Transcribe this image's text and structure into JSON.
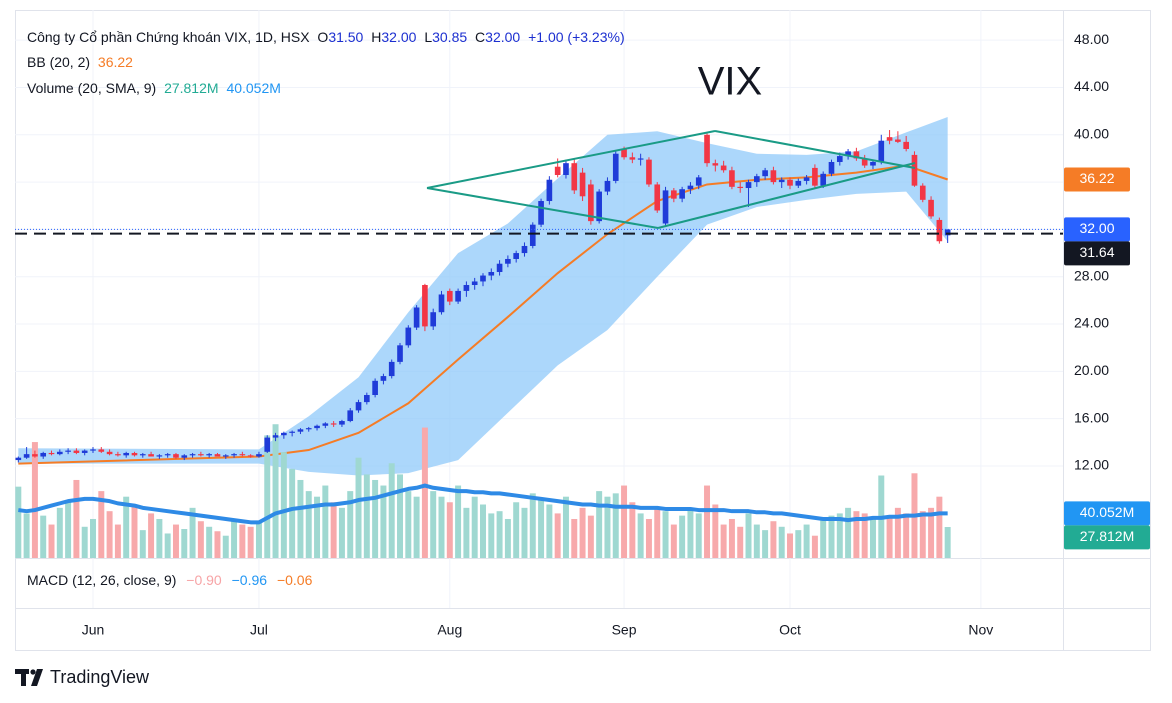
{
  "legend": {
    "title": "Công ty Cổ phần Chứng khoán VIX, 1D, HSX",
    "ohlc": [
      {
        "key": "O",
        "value": "31.50"
      },
      {
        "key": "H",
        "value": "32.00"
      },
      {
        "key": "L",
        "value": "30.85"
      },
      {
        "key": "C",
        "value": "32.00"
      }
    ],
    "change": "+1.00 (+3.23%)",
    "bb_label": "BB (20, 2)",
    "bb_value": "36.22",
    "volume_label": "Volume (20, SMA, 9)",
    "volume_values": [
      "27.812M",
      "40.052M"
    ],
    "macd_label": "MACD (12, 26, close, 9)",
    "macd_values": [
      "−0.90",
      "−0.96",
      "−0.06"
    ]
  },
  "chart_data": {
    "type": "candlestick",
    "title": "VIX",
    "up_color": "#1f3bd8",
    "down_color": "#f23645",
    "volume_up_color": "#9fd8d1",
    "volume_down_color": "#f7a9ab",
    "open": [
      12.5,
      12.7,
      13.0,
      12.8,
      13.1,
      13.0,
      13.2,
      13.3,
      13.1,
      13.3,
      13.4,
      13.2,
      13.0,
      12.9,
      13.1,
      12.9,
      13.0,
      12.8,
      12.9,
      13.0,
      12.7,
      12.9,
      13.0,
      12.9,
      13.0,
      12.8,
      12.9,
      13.0,
      12.9,
      12.8,
      13.2,
      14.4,
      14.6,
      14.8,
      14.9,
      15.1,
      15.2,
      15.4,
      15.6,
      15.5,
      15.8,
      16.7,
      17.4,
      18.0,
      19.2,
      19.6,
      20.8,
      22.2,
      23.7,
      27.3,
      23.8,
      25.0,
      26.8,
      25.9,
      26.8,
      27.3,
      27.6,
      28.1,
      28.4,
      29.1,
      29.5,
      30.0,
      30.6,
      32.4,
      34.4,
      37.3,
      36.6,
      37.6,
      36.8,
      35.8,
      32.7,
      35.2,
      36.1,
      38.8,
      38.1,
      37.9,
      37.9,
      35.8,
      32.5,
      35.3,
      34.6,
      35.4,
      35.7,
      40.0,
      37.6,
      37.4,
      37.0,
      35.6,
      35.5,
      36.0,
      36.5,
      37.0,
      36.0,
      36.2,
      35.7,
      36.1,
      37.2,
      35.7,
      36.7,
      37.7,
      38.2,
      38.6,
      38.0,
      37.4,
      37.7,
      39.8,
      39.6,
      39.4,
      38.3,
      35.7,
      34.5,
      32.8,
      31.5
    ],
    "high": [
      12.8,
      13.6,
      13.3,
      13.2,
      13.3,
      13.4,
      13.5,
      13.5,
      13.4,
      13.6,
      13.6,
      13.4,
      13.2,
      13.2,
      13.2,
      13.1,
      13.2,
      13.0,
      13.1,
      13.1,
      13.0,
      13.1,
      13.2,
      13.1,
      13.1,
      13.0,
      13.1,
      13.2,
      13.0,
      13.2,
      14.6,
      14.8,
      14.9,
      15.0,
      15.2,
      15.3,
      15.5,
      15.7,
      15.8,
      15.9,
      16.9,
      17.6,
      18.2,
      19.4,
      19.8,
      21.0,
      22.4,
      23.9,
      25.6,
      27.4,
      25.3,
      26.8,
      27.0,
      27.0,
      27.6,
      27.9,
      28.3,
      28.7,
      29.4,
      29.8,
      30.2,
      30.9,
      32.6,
      34.6,
      36.5,
      38.0,
      37.9,
      38.0,
      37.2,
      36.2,
      35.4,
      36.4,
      38.6,
      39.0,
      38.5,
      38.4,
      38.1,
      36.0,
      35.6,
      35.5,
      35.6,
      36.0,
      36.6,
      40.2,
      37.9,
      37.8,
      37.3,
      36.0,
      36.2,
      36.7,
      37.2,
      37.3,
      36.4,
      36.4,
      36.3,
      36.6,
      37.5,
      36.9,
      37.9,
      38.5,
      38.8,
      38.9,
      38.3,
      37.9,
      40.0,
      40.4,
      40.3,
      39.9,
      38.6,
      35.9,
      34.8,
      33.0,
      32.0
    ],
    "low": [
      12.3,
      12.6,
      12.7,
      12.6,
      12.9,
      12.9,
      13.0,
      13.0,
      12.9,
      13.1,
      13.1,
      12.9,
      12.8,
      12.7,
      12.8,
      12.7,
      12.8,
      12.6,
      12.7,
      12.6,
      12.5,
      12.7,
      12.8,
      12.7,
      12.8,
      12.6,
      12.7,
      12.8,
      12.7,
      12.7,
      13.1,
      14.1,
      14.3,
      14.5,
      14.7,
      14.9,
      15.0,
      15.2,
      15.3,
      15.3,
      15.7,
      16.5,
      17.2,
      17.8,
      18.9,
      19.4,
      20.6,
      22.0,
      23.5,
      23.4,
      23.5,
      24.8,
      25.6,
      25.7,
      26.3,
      26.9,
      27.2,
      27.7,
      28.1,
      28.8,
      29.2,
      29.7,
      30.4,
      32.2,
      34.1,
      36.4,
      36.3,
      35.0,
      34.4,
      32.4,
      32.5,
      34.9,
      35.9,
      37.9,
      37.6,
      37.4,
      35.6,
      33.4,
      32.2,
      34.3,
      34.3,
      35.0,
      35.4,
      37.3,
      36.9,
      36.8,
      35.4,
      35.1,
      33.9,
      35.6,
      36.2,
      35.8,
      35.5,
      35.4,
      35.5,
      35.8,
      35.5,
      35.5,
      36.5,
      37.4,
      37.9,
      37.8,
      37.2,
      37.1,
      37.5,
      39.2,
      39.3,
      38.6,
      35.6,
      34.3,
      32.9,
      30.8,
      30.85
    ],
    "close": [
      12.7,
      13.0,
      12.8,
      13.1,
      13.0,
      13.2,
      13.3,
      13.1,
      13.3,
      13.4,
      13.2,
      13.0,
      12.9,
      13.1,
      12.9,
      13.0,
      12.8,
      12.9,
      13.0,
      12.7,
      12.9,
      13.0,
      12.9,
      13.0,
      12.8,
      12.9,
      13.0,
      12.9,
      12.8,
      13.0,
      14.4,
      14.6,
      14.8,
      14.9,
      15.1,
      15.2,
      15.4,
      15.6,
      15.5,
      15.8,
      16.7,
      17.4,
      18.0,
      19.2,
      19.6,
      20.8,
      22.2,
      23.7,
      25.4,
      23.8,
      25.0,
      26.5,
      25.9,
      26.8,
      27.3,
      27.6,
      28.1,
      28.4,
      29.1,
      29.5,
      30.0,
      30.6,
      32.4,
      34.4,
      36.2,
      36.6,
      37.6,
      35.3,
      34.8,
      32.7,
      35.2,
      36.1,
      38.4,
      38.1,
      37.9,
      38.0,
      35.8,
      33.6,
      35.3,
      34.6,
      35.4,
      35.7,
      36.4,
      37.6,
      37.4,
      37.0,
      35.6,
      35.5,
      36.0,
      36.5,
      37.0,
      36.0,
      36.2,
      35.7,
      36.1,
      36.4,
      35.7,
      36.7,
      37.7,
      38.2,
      38.6,
      38.0,
      37.4,
      37.7,
      39.5,
      39.5,
      39.4,
      38.8,
      35.7,
      34.5,
      33.1,
      31.0,
      32.0
    ],
    "volume": [
      64,
      40,
      104,
      38,
      30,
      45,
      52,
      70,
      28,
      35,
      60,
      42,
      30,
      55,
      48,
      25,
      40,
      35,
      22,
      30,
      26,
      45,
      33,
      28,
      24,
      20,
      35,
      30,
      28,
      32,
      110,
      120,
      95,
      80,
      70,
      60,
      55,
      65,
      50,
      45,
      60,
      90,
      75,
      70,
      65,
      85,
      75,
      60,
      55,
      117,
      60,
      55,
      50,
      65,
      45,
      55,
      48,
      40,
      42,
      35,
      50,
      45,
      58,
      52,
      48,
      40,
      55,
      35,
      45,
      38,
      60,
      55,
      58,
      65,
      50,
      40,
      35,
      45,
      42,
      30,
      38,
      45,
      40,
      65,
      48,
      30,
      35,
      28,
      40,
      30,
      25,
      33,
      28,
      22,
      25,
      30,
      20,
      35,
      38,
      40,
      45,
      42,
      40,
      35,
      74,
      38,
      45,
      40,
      76,
      42,
      45,
      55,
      27.812
    ],
    "volume_sma": {
      "color": "#2e8ae6",
      "values": [
        43,
        42,
        43,
        45,
        47,
        49,
        51,
        52,
        53,
        53,
        52,
        51,
        49,
        48,
        47,
        45,
        44,
        43,
        42,
        41,
        40,
        39,
        38,
        37,
        36,
        35,
        34,
        33,
        32,
        32,
        36,
        40,
        42,
        44,
        45,
        46,
        47,
        48,
        48,
        49,
        50,
        52,
        53,
        54,
        56,
        58,
        60,
        62,
        63,
        65,
        63,
        62,
        61,
        60,
        60,
        59,
        59,
        58,
        58,
        57,
        56,
        55,
        54,
        53,
        52,
        51,
        50,
        49,
        48,
        48,
        47,
        47,
        46,
        46,
        46,
        45,
        45,
        45,
        44,
        44,
        44,
        44,
        43,
        43,
        43,
        43,
        42,
        42,
        42,
        41,
        41,
        40,
        40,
        39,
        38,
        37,
        36,
        35,
        35,
        35,
        34,
        35,
        35,
        36,
        36,
        37,
        37,
        38,
        38,
        39,
        39,
        40,
        40.052
      ]
    },
    "bollinger": {
      "fill": "#90caf9",
      "basis_color": "#f57c26",
      "x": [
        0,
        29,
        35,
        41,
        47,
        53,
        59,
        65,
        71,
        77,
        83,
        89,
        95,
        101,
        107,
        112
      ],
      "upper": [
        13.5,
        13.4,
        16.2,
        19.5,
        25.0,
        30.0,
        32.5,
        36.3,
        40.0,
        40.3,
        39.3,
        38.4,
        38.3,
        38.6,
        40.2,
        41.5
      ],
      "basis": [
        12.2,
        12.8,
        13.35,
        14.8,
        17.3,
        21.0,
        24.6,
        28.3,
        31.6,
        34.4,
        35.8,
        36.2,
        36.4,
        36.8,
        37.4,
        36.22
      ],
      "lower": [
        12.2,
        12.2,
        11.5,
        11.2,
        11.4,
        12.5,
        16.5,
        20.5,
        23.5,
        28.0,
        32.4,
        33.9,
        34.5,
        35.0,
        35.2,
        31.0
      ]
    },
    "xlim": [
      -0.4,
      125.9
    ],
    "xticks": [
      {
        "value": 9,
        "label": "Jun"
      },
      {
        "value": 29,
        "label": "Jul"
      },
      {
        "value": 52,
        "label": "Aug"
      },
      {
        "value": 73,
        "label": "Sep"
      },
      {
        "value": 93,
        "label": "Oct"
      },
      {
        "value": 116,
        "label": "Nov"
      }
    ],
    "ylim": [
      4.22,
      50.55
    ],
    "yticks": [
      {
        "value": 12,
        "label": "12.00"
      },
      {
        "value": 16,
        "label": "16.00"
      },
      {
        "value": 20,
        "label": "20.00"
      },
      {
        "value": 24,
        "label": "24.00"
      },
      {
        "value": 28,
        "label": "28.00"
      },
      {
        "value": 32,
        "label": "32.00"
      },
      {
        "value": 36,
        "label": "36.00"
      },
      {
        "value": 40,
        "label": "40.00"
      },
      {
        "value": 44,
        "label": "44.00"
      },
      {
        "value": 48,
        "label": "48.00"
      }
    ],
    "volume_lim": [
      0,
      491.6
    ],
    "grid": true,
    "price_labels": [
      {
        "value": 36.22,
        "label": "36.22",
        "color": "#f57c26"
      },
      {
        "value": 32,
        "label": "32.00",
        "color": "#2962ff"
      },
      {
        "value": 31.64,
        "label": "31.64",
        "color": "#131722"
      }
    ],
    "volume_labels": [
      {
        "value": 40.052,
        "label": "40.052M",
        "color": "#2196f3"
      },
      {
        "value": 27.812,
        "label": "27.812M",
        "color": "#22ab94"
      }
    ]
  },
  "footer": {
    "brand": "TradingView"
  }
}
